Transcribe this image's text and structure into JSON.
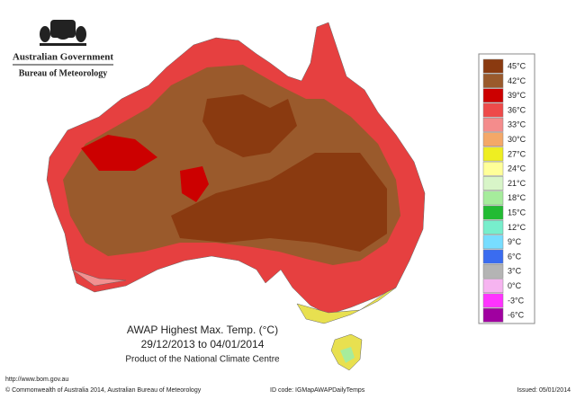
{
  "header": {
    "agency": "Australian Government",
    "bureau": "Bureau of Meteorology"
  },
  "map": {
    "title": "AWAP Highest Max. Temp. (°C)",
    "period": "29/12/2013 to 04/01/2014",
    "product": "Product of the National Climate Centre"
  },
  "legend": {
    "items": [
      {
        "label": "45°C",
        "color": "#8a3a10"
      },
      {
        "label": "42°C",
        "color": "#9a5a2c"
      },
      {
        "label": "39°C",
        "color": "#cc0000"
      },
      {
        "label": "36°C",
        "color": "#ee4a4a"
      },
      {
        "label": "33°C",
        "color": "#f48c8c"
      },
      {
        "label": "30°C",
        "color": "#f4a868"
      },
      {
        "label": "27°C",
        "color": "#eeee22"
      },
      {
        "label": "24°C",
        "color": "#ffff99"
      },
      {
        "label": "21°C",
        "color": "#d8f5c8"
      },
      {
        "label": "18°C",
        "color": "#a6ec9c"
      },
      {
        "label": "15°C",
        "color": "#22bb33"
      },
      {
        "label": "12°C",
        "color": "#77eecc"
      },
      {
        "label": "9°C",
        "color": "#77ddff"
      },
      {
        "label": "6°C",
        "color": "#3a6cf0"
      },
      {
        "label": "3°C",
        "color": "#b4b4b4"
      },
      {
        "label": "0°C",
        "color": "#f6b4f0"
      },
      {
        "label": "-3°C",
        "color": "#ff33ff"
      },
      {
        "label": "-6°C",
        "color": "#a000a0"
      }
    ]
  },
  "footer": {
    "url": "http://www.bom.gov.au",
    "copyright": "© Commonwealth of Australia 2014, Australian Bureau of Meteorology",
    "id_code": "ID code: IGMapAWAPDailyTemps",
    "issued": "Issued: 05/01/2014"
  }
}
